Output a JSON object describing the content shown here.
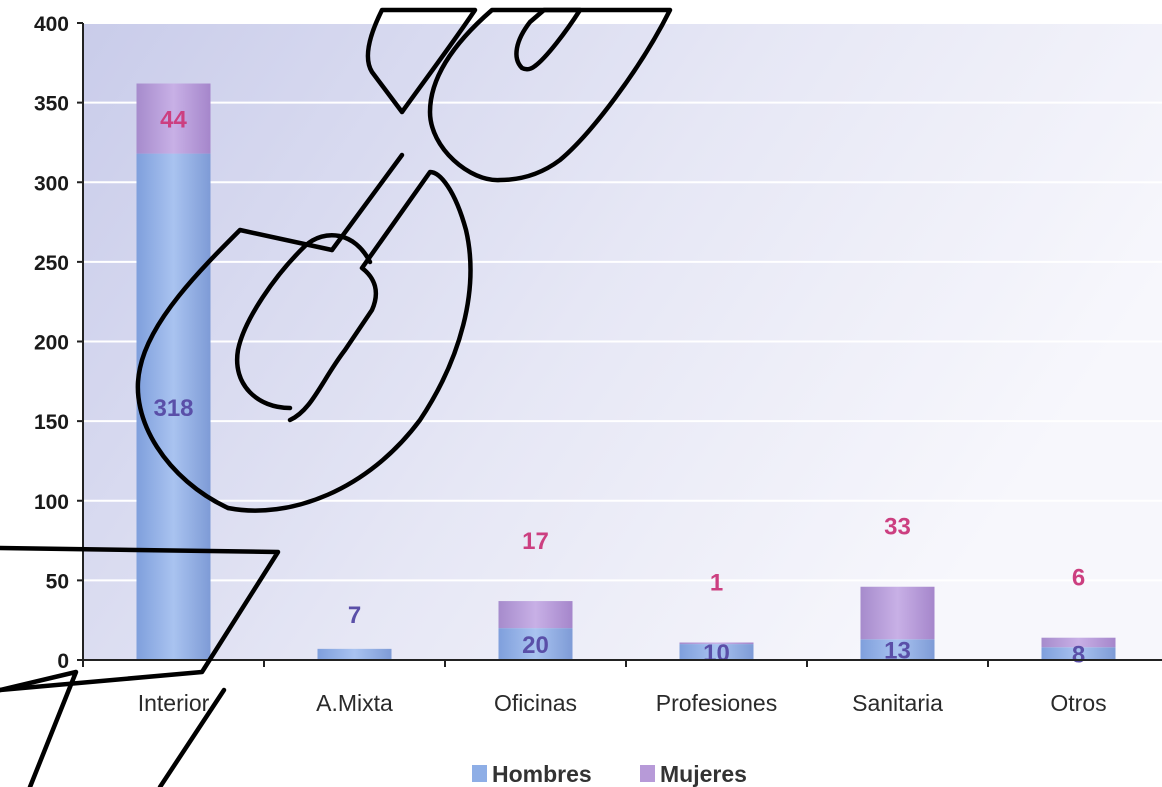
{
  "chart_data": {
    "type": "bar",
    "stacked": true,
    "title": "",
    "xlabel": "",
    "ylabel": "",
    "ylim": [
      0,
      400
    ],
    "yticks": [
      0,
      50,
      100,
      150,
      200,
      250,
      300,
      350,
      400
    ],
    "categories": [
      "Interior",
      "A.Mixta",
      "Oficinas",
      "Profesiones",
      "Sanitaria",
      "Otros"
    ],
    "series": [
      {
        "name": "Hombres",
        "color": "#8eaee6",
        "values": [
          318,
          7,
          20,
          10,
          13,
          8
        ]
      },
      {
        "name": "Mujeres",
        "color": "#b79ad8",
        "values": [
          44,
          0,
          17,
          1,
          33,
          6
        ]
      }
    ],
    "data_labels": {
      "Hombres": [
        "318",
        "7",
        "20",
        "10",
        "13",
        "8"
      ],
      "Mujeres": [
        "44",
        "",
        "17",
        "1",
        "33",
        "6"
      ]
    },
    "label_colors": {
      "Hombres": "#5a4fa8",
      "Mujeres": "#cc3f80"
    },
    "grid": true,
    "legend": {
      "position": "bottom",
      "entries": [
        "Hombres",
        "Mujeres"
      ]
    }
  }
}
